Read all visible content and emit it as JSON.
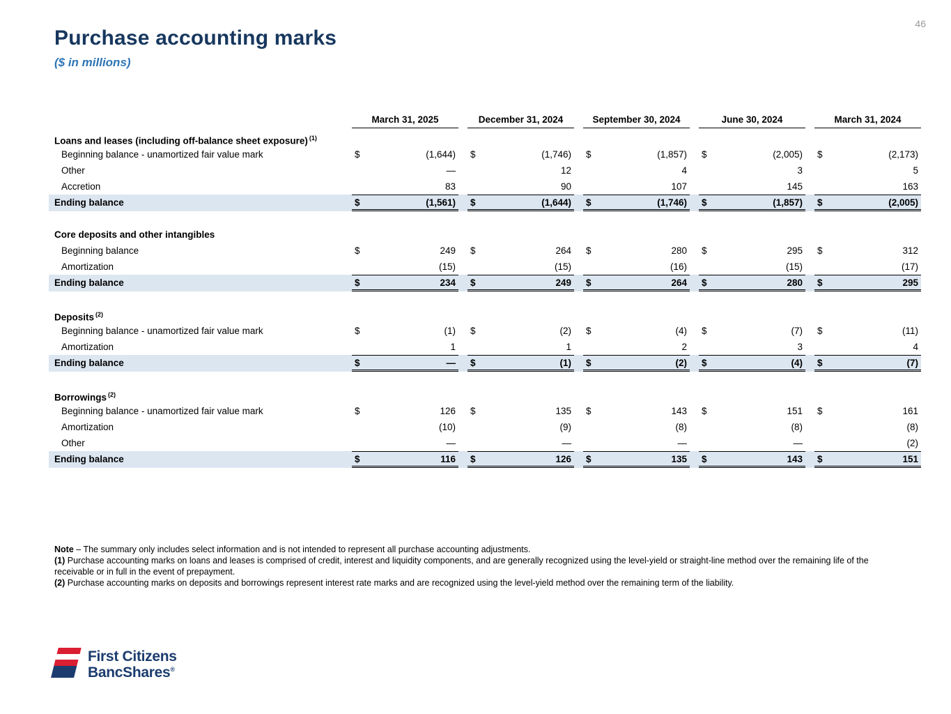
{
  "page": {
    "number": "46"
  },
  "header": {
    "title": "Purchase accounting marks",
    "subtitle": "($ in millions)"
  },
  "table": {
    "currency_symbol": "$",
    "columns": [
      "March 31, 2025",
      "December 31, 2024",
      "September 30, 2024",
      "June 30, 2024",
      "March 31, 2024"
    ],
    "sections": [
      {
        "heading": "Loans and leases (including off-balance sheet exposure)",
        "sup": "(1)",
        "rows": [
          {
            "label": "Beginning balance - unamortized fair value mark",
            "dollar": true,
            "values": [
              "(1,644)",
              "(1,746)",
              "(1,857)",
              "(2,005)",
              "(2,173)"
            ]
          },
          {
            "label": "Other",
            "dollar": false,
            "values": [
              "—",
              "12",
              "4",
              "3",
              "5"
            ]
          },
          {
            "label": "Accretion",
            "dollar": false,
            "values": [
              "83",
              "90",
              "107",
              "145",
              "163"
            ]
          }
        ],
        "total": {
          "label": "Ending balance",
          "dollar": true,
          "values": [
            "(1,561)",
            "(1,644)",
            "(1,746)",
            "(1,857)",
            "(2,005)"
          ]
        }
      },
      {
        "heading": "Core deposits and other intangibles",
        "sup": "",
        "rows": [
          {
            "label": "Beginning balance",
            "dollar": true,
            "values": [
              "249",
              "264",
              "280",
              "295",
              "312"
            ]
          },
          {
            "label": "Amortization",
            "dollar": false,
            "values": [
              "(15)",
              "(15)",
              "(16)",
              "(15)",
              "(17)"
            ]
          }
        ],
        "total": {
          "label": "Ending balance",
          "dollar": true,
          "values": [
            "234",
            "249",
            "264",
            "280",
            "295"
          ]
        }
      },
      {
        "heading": "Deposits",
        "sup": "(2)",
        "rows": [
          {
            "label": "Beginning balance - unamortized fair value mark",
            "dollar": true,
            "values": [
              "(1)",
              "(2)",
              "(4)",
              "(7)",
              "(11)"
            ]
          },
          {
            "label": "Amortization",
            "dollar": false,
            "values": [
              "1",
              "1",
              "2",
              "3",
              "4"
            ]
          }
        ],
        "total": {
          "label": "Ending balance",
          "dollar": true,
          "values": [
            "—",
            "(1)",
            "(2)",
            "(4)",
            "(7)"
          ]
        }
      },
      {
        "heading": "Borrowings",
        "sup": "(2)",
        "rows": [
          {
            "label": "Beginning balance - unamortized fair value mark",
            "dollar": true,
            "values": [
              "126",
              "135",
              "143",
              "151",
              "161"
            ]
          },
          {
            "label": "Amortization",
            "dollar": false,
            "values": [
              "(10)",
              "(9)",
              "(8)",
              "(8)",
              "(8)"
            ]
          },
          {
            "label": "Other",
            "dollar": false,
            "values": [
              "—",
              "—",
              "—",
              "—",
              "(2)"
            ]
          }
        ],
        "total": {
          "label": "Ending balance",
          "dollar": true,
          "values": [
            "116",
            "126",
            "135",
            "143",
            "151"
          ]
        }
      }
    ]
  },
  "notes": [
    {
      "prefix": "Note",
      "text": " – The summary only includes select information and is not intended to represent all purchase accounting adjustments."
    },
    {
      "prefix": "(1)",
      "text": " Purchase accounting marks on loans and leases is comprised of credit, interest and liquidity components, and are generally recognized using the level-yield or straight-line method over the remaining life of the receivable or in full in the event of prepayment."
    },
    {
      "prefix": "(2)",
      "text": " Purchase accounting marks on deposits and borrowings represent interest rate marks and are recognized using the level-yield method over the remaining term of the liability."
    }
  ],
  "logo": {
    "name_line1": "First Citizens",
    "name_line2": "BancShares",
    "registered": "®"
  },
  "colors": {
    "title": "#17375E",
    "subtitle": "#2E75B6",
    "ending_balance_row_bg": "#DCE6F1",
    "logo_navy": "#1B3C6E",
    "logo_red": "#DA1F33"
  }
}
